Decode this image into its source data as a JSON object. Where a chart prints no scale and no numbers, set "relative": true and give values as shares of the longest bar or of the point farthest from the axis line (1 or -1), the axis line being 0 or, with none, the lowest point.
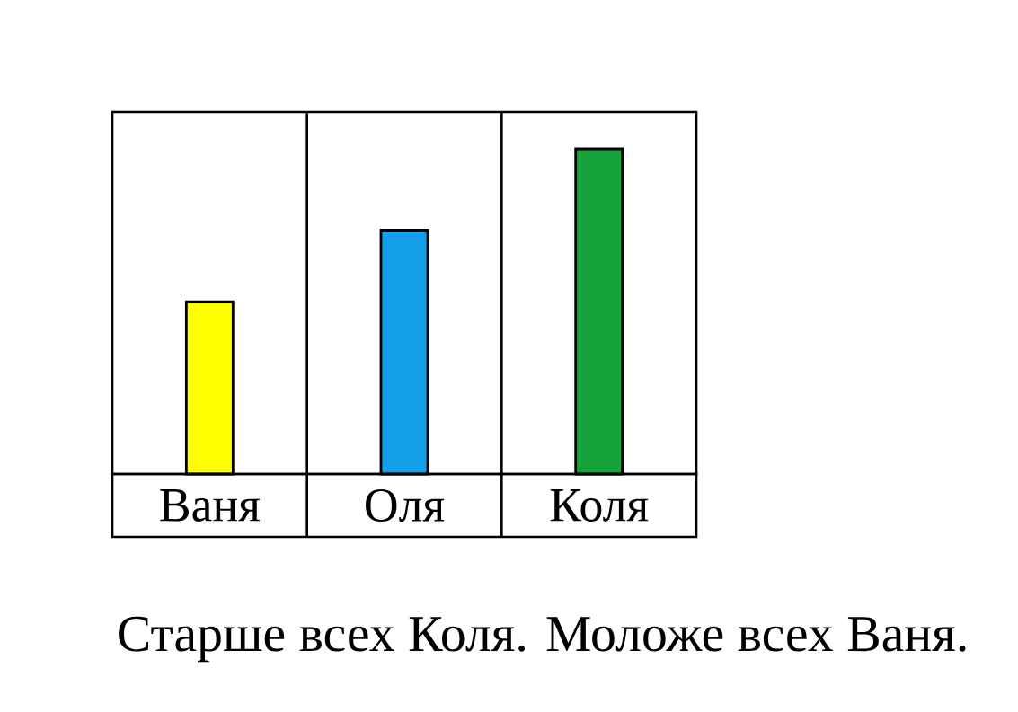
{
  "chart_data": {
    "type": "bar",
    "relative": true,
    "categories": [
      "Ваня",
      "Оля",
      "Коля"
    ],
    "values": [
      0.53,
      0.75,
      1
    ],
    "colors": [
      "#ffff00",
      "#139fe8",
      "#17a33b"
    ],
    "annotations": [
      "Старше всех Коля. Моложе всех Ваня."
    ]
  }
}
